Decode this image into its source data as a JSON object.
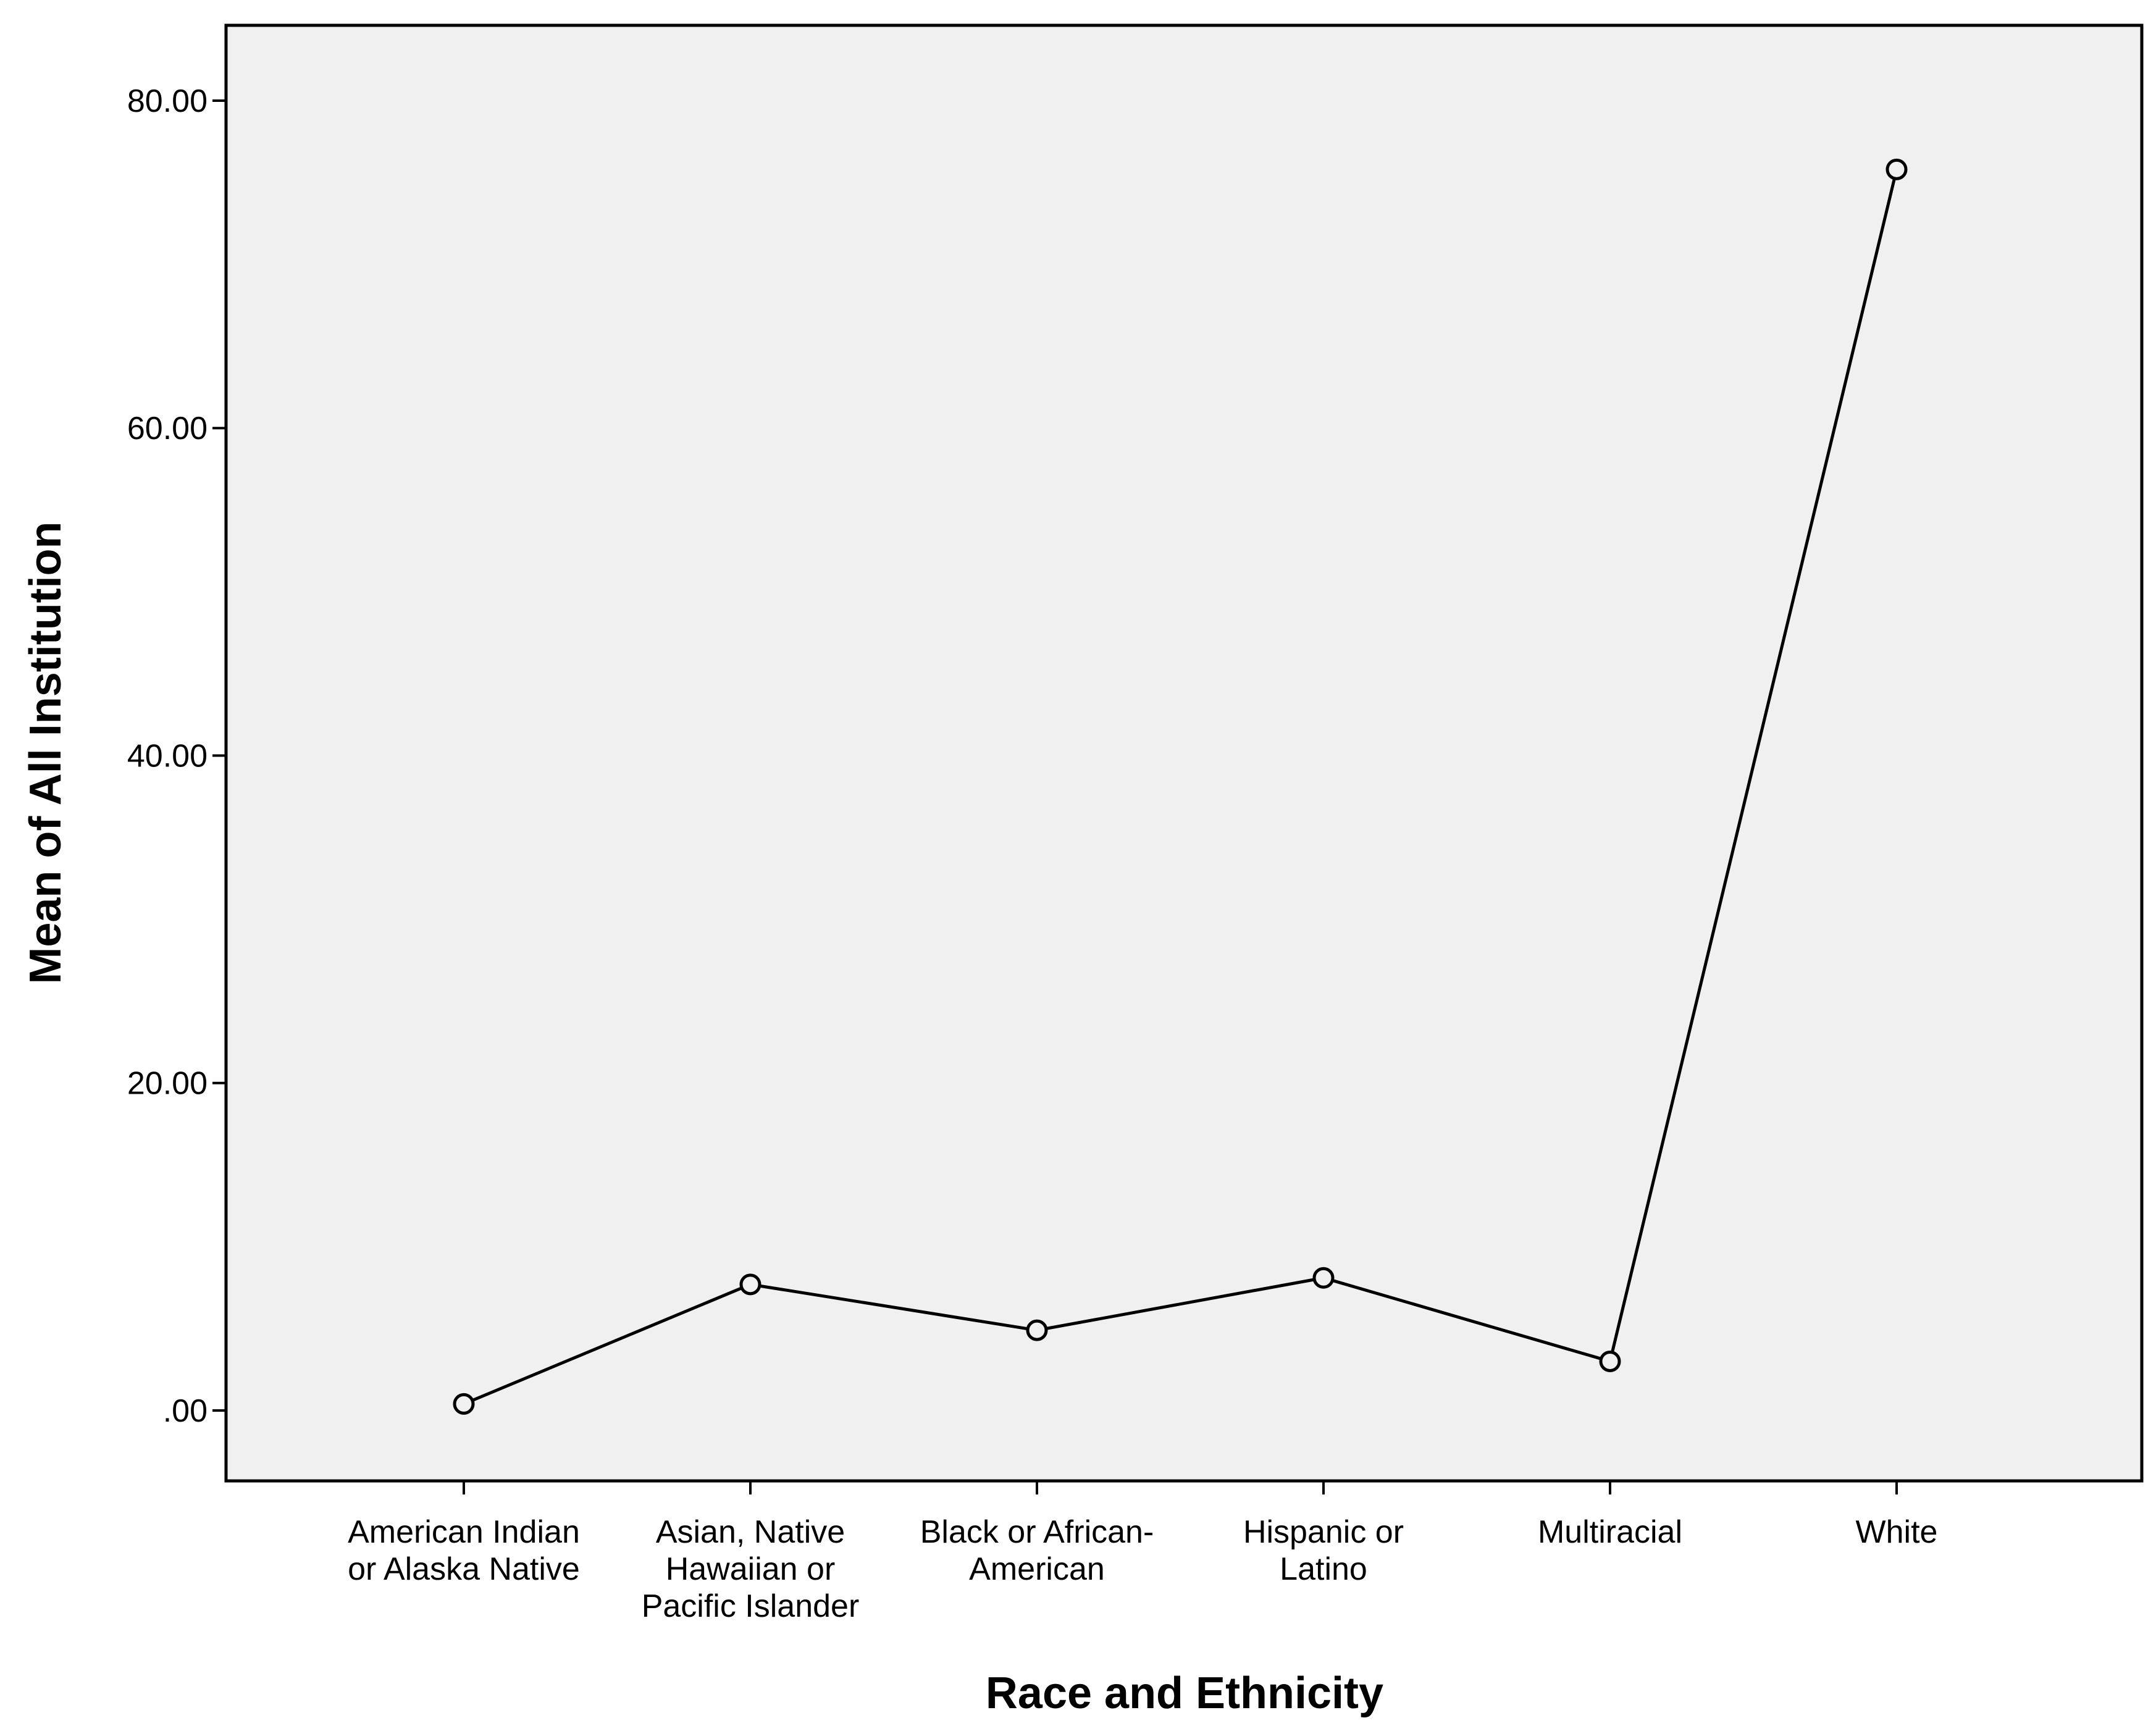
{
  "colors": {
    "plot_background": "#f0f0f0",
    "axis_color": "#000000",
    "line_color": "#000000",
    "marker_fill": "#f0f0f0",
    "page_background": "#ffffff"
  },
  "chart_data": {
    "type": "line",
    "title": "",
    "xlabel": "Race and Ethnicity",
    "ylabel": "Mean of All Institution",
    "ylim": [
      -4.3,
      84.6
    ],
    "grid": false,
    "legend": "none",
    "y_ticks": [
      {
        "value": 0,
        "label": ".00"
      },
      {
        "value": 20,
        "label": "20.00"
      },
      {
        "value": 40,
        "label": "40.00"
      },
      {
        "value": 60,
        "label": "60.00"
      },
      {
        "value": 80,
        "label": "80.00"
      }
    ],
    "categories": [
      {
        "lines": [
          "American Indian",
          "or Alaska Native"
        ]
      },
      {
        "lines": [
          "Asian, Native",
          "Hawaiian or",
          "Pacific Islander"
        ]
      },
      {
        "lines": [
          "Black or African-",
          "American"
        ]
      },
      {
        "lines": [
          "Hispanic or",
          "Latino"
        ]
      },
      {
        "lines": [
          "Multiracial"
        ]
      },
      {
        "lines": [
          "White"
        ]
      }
    ],
    "series": [
      {
        "marker": "open-circle",
        "values": [
          0.4,
          7.7,
          4.9,
          8.1,
          3.0,
          75.8
        ]
      }
    ]
  }
}
